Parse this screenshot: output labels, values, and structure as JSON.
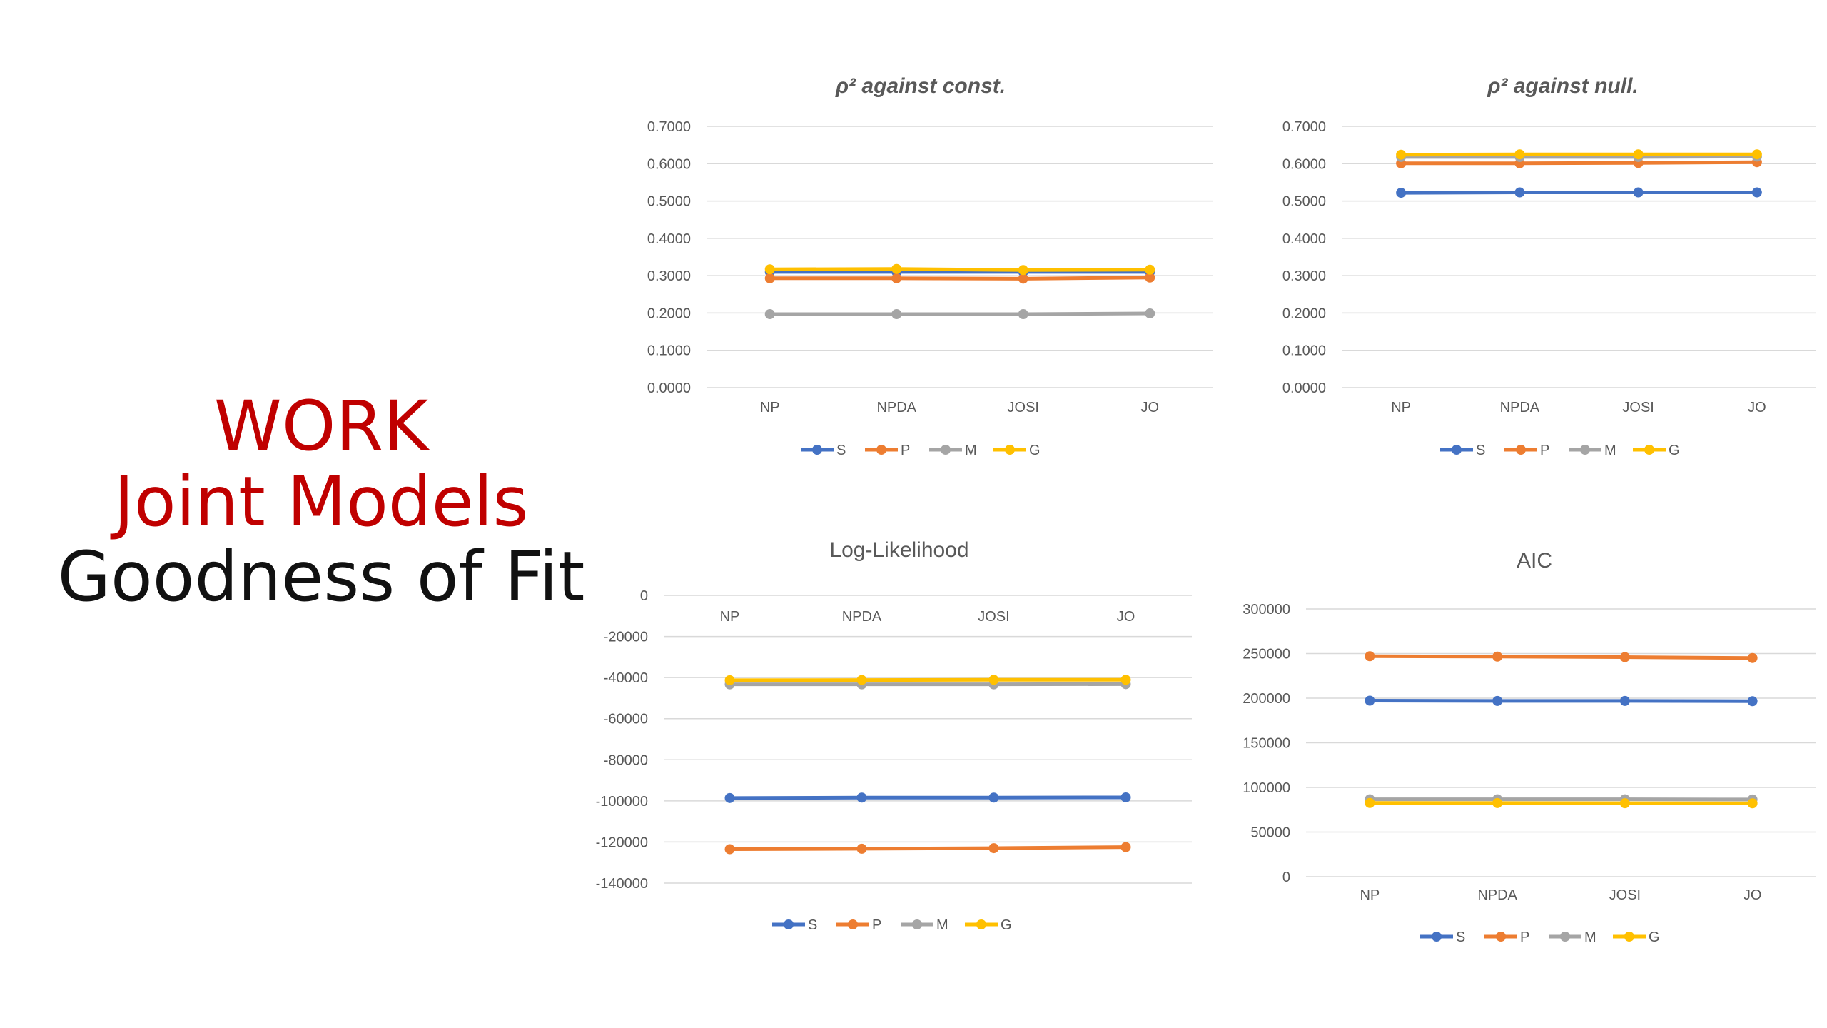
{
  "slide": {
    "title_line1": "WORK",
    "title_line2": "Joint Models",
    "title_line3": "Goodness of Fit"
  },
  "colors": {
    "S": "#4472c4",
    "P": "#ed7d31",
    "M": "#a5a5a5",
    "G": "#ffc000",
    "gridline": "#d9d9d9",
    "axis_text": "#595959",
    "title_red": "#c00000"
  },
  "chart_data": [
    {
      "type": "line",
      "title": "ρ² against const.",
      "categories": [
        "NP",
        "NPDA",
        "JOSI",
        "JO"
      ],
      "ylim": [
        0,
        0.7
      ],
      "yticks": [
        "0.7000",
        "0.6000",
        "0.5000",
        "0.4000",
        "0.3000",
        "0.2000",
        "0.1000",
        "0.0000"
      ],
      "grid": true,
      "legend": "bottom",
      "series": [
        {
          "name": "S",
          "values": [
            0.31,
            0.31,
            0.31,
            0.31
          ]
        },
        {
          "name": "P",
          "values": [
            0.293,
            0.293,
            0.292,
            0.295
          ]
        },
        {
          "name": "M",
          "values": [
            0.197,
            0.197,
            0.197,
            0.199
          ]
        },
        {
          "name": "G",
          "values": [
            0.317,
            0.318,
            0.315,
            0.316
          ]
        }
      ]
    },
    {
      "type": "line",
      "title": "ρ² against null.",
      "categories": [
        "NP",
        "NPDA",
        "JOSI",
        "JO"
      ],
      "ylim": [
        0,
        0.7
      ],
      "yticks": [
        "0.7000",
        "0.6000",
        "0.5000",
        "0.4000",
        "0.3000",
        "0.2000",
        "0.1000",
        "0.0000"
      ],
      "grid": true,
      "legend": "bottom",
      "series": [
        {
          "name": "S",
          "values": [
            0.522,
            0.523,
            0.523,
            0.523
          ]
        },
        {
          "name": "P",
          "values": [
            0.601,
            0.601,
            0.602,
            0.604
          ]
        },
        {
          "name": "M",
          "values": [
            0.618,
            0.618,
            0.618,
            0.619
          ]
        },
        {
          "name": "G",
          "values": [
            0.624,
            0.625,
            0.625,
            0.625
          ]
        }
      ]
    },
    {
      "type": "line",
      "title": "Log-Likelihood",
      "categories": [
        "NP",
        "NPDA",
        "JOSI",
        "JO"
      ],
      "ylim": [
        -140000,
        0
      ],
      "yticks": [
        "0",
        "-20000",
        "-40000",
        "-60000",
        "-80000",
        "-100000",
        "-120000",
        "-140000"
      ],
      "grid": true,
      "legend": "bottom",
      "series": [
        {
          "name": "S",
          "values": [
            -98600,
            -98400,
            -98400,
            -98300
          ]
        },
        {
          "name": "P",
          "values": [
            -123500,
            -123300,
            -123000,
            -122500
          ]
        },
        {
          "name": "M",
          "values": [
            -43300,
            -43300,
            -43300,
            -43200
          ]
        },
        {
          "name": "G",
          "values": [
            -41300,
            -41200,
            -41100,
            -41100
          ]
        }
      ]
    },
    {
      "type": "line",
      "title": "AIC",
      "categories": [
        "NP",
        "NPDA",
        "JOSI",
        "JO"
      ],
      "ylim": [
        0,
        300000
      ],
      "yticks": [
        "300000",
        "250000",
        "200000",
        "150000",
        "100000",
        "50000",
        "0"
      ],
      "grid": true,
      "legend": "bottom",
      "series": [
        {
          "name": "S",
          "values": [
            197200,
            196900,
            196900,
            196600
          ]
        },
        {
          "name": "P",
          "values": [
            247000,
            246600,
            246000,
            245000
          ]
        },
        {
          "name": "M",
          "values": [
            86700,
            86700,
            86700,
            86500
          ]
        },
        {
          "name": "G",
          "values": [
            82600,
            82500,
            82300,
            82200
          ]
        }
      ]
    }
  ]
}
